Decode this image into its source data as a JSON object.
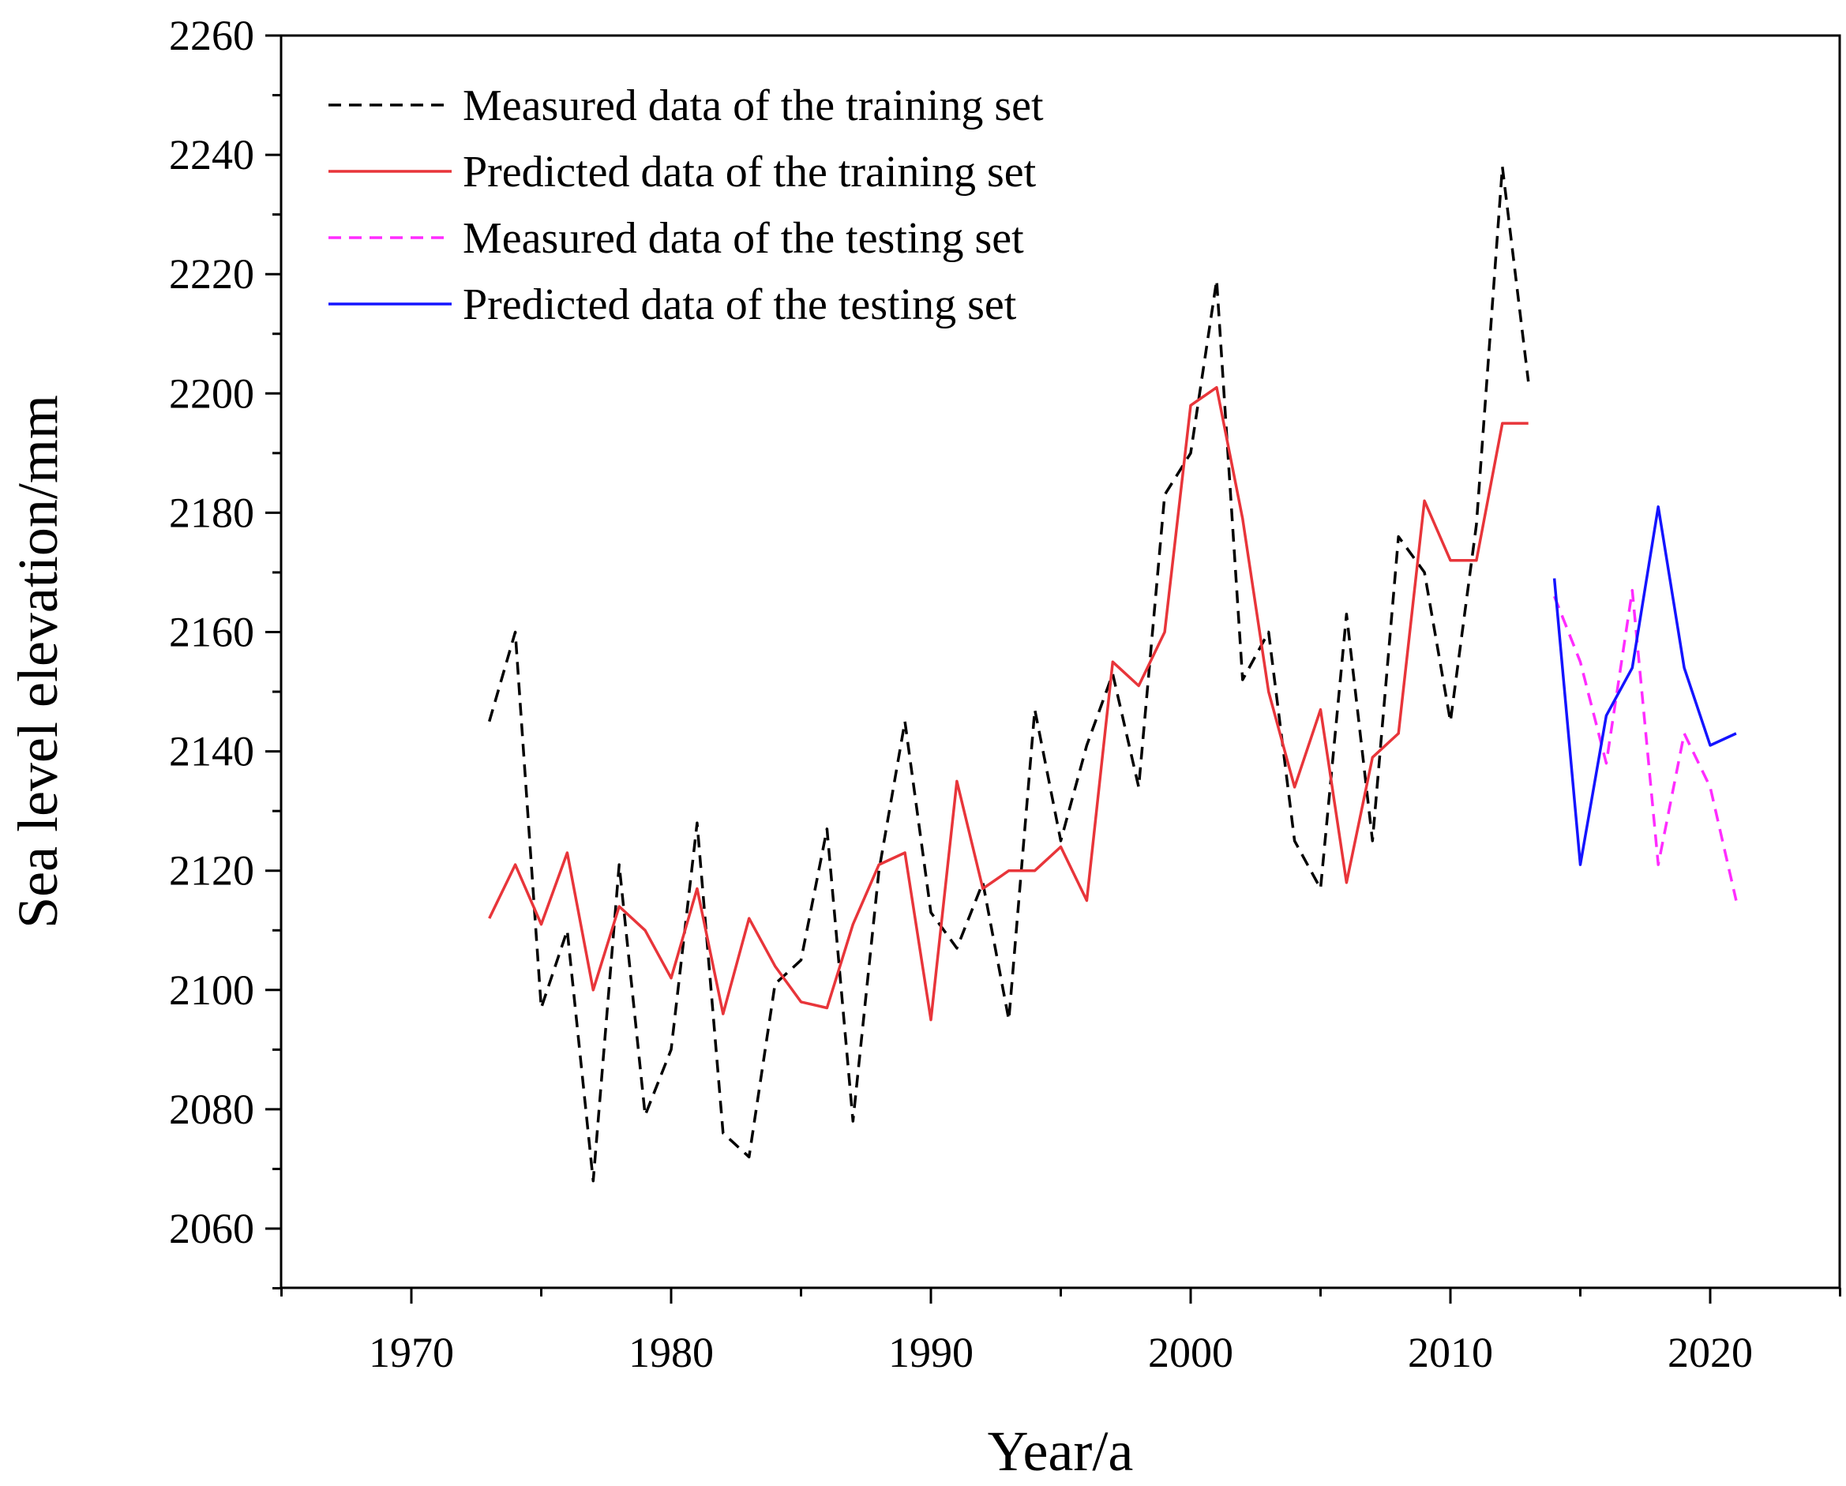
{
  "chart_data": {
    "type": "line",
    "title": "",
    "xlabel": "Year/a",
    "ylabel": "Sea level elevation/mm",
    "xlim": [
      1965,
      2025
    ],
    "ylim": [
      2050,
      2260
    ],
    "xticks": [
      1970,
      1980,
      1990,
      2000,
      2010,
      2020
    ],
    "yticks": [
      2060,
      2080,
      2100,
      2120,
      2140,
      2160,
      2180,
      2200,
      2220,
      2240,
      2260
    ],
    "grid": false,
    "legend_position": "top-left",
    "series": [
      {
        "name": "Measured data of the training set",
        "color": "#000000",
        "dash": "dashed",
        "x": [
          1973,
          1974,
          1975,
          1976,
          1977,
          1978,
          1979,
          1980,
          1981,
          1982,
          1983,
          1984,
          1985,
          1986,
          1987,
          1988,
          1989,
          1990,
          1991,
          1992,
          1993,
          1994,
          1995,
          1996,
          1997,
          1998,
          1999,
          2000,
          2001,
          2002,
          2003,
          2004,
          2005,
          2006,
          2007,
          2008,
          2009,
          2010,
          2011,
          2012,
          2013
        ],
        "values": [
          2145,
          2160,
          2097,
          2110,
          2068,
          2121,
          2079,
          2090,
          2128,
          2076,
          2072,
          2101,
          2105,
          2127,
          2078,
          2120,
          2145,
          2113,
          2107,
          2118,
          2095,
          2147,
          2125,
          2141,
          2153,
          2134,
          2183,
          2190,
          2219,
          2152,
          2160,
          2125,
          2117,
          2163,
          2125,
          2176,
          2170,
          2145,
          2178,
          2238,
          2202
        ]
      },
      {
        "name": "Predicted data of the training set",
        "color": "#e8353a",
        "dash": "solid",
        "x": [
          1973,
          1974,
          1975,
          1976,
          1977,
          1978,
          1979,
          1980,
          1981,
          1982,
          1983,
          1984,
          1985,
          1986,
          1987,
          1988,
          1989,
          1990,
          1991,
          1992,
          1993,
          1994,
          1995,
          1996,
          1997,
          1998,
          1999,
          2000,
          2001,
          2002,
          2003,
          2004,
          2005,
          2006,
          2007,
          2008,
          2009,
          2010,
          2011,
          2012,
          2013
        ],
        "values": [
          2112,
          2121,
          2111,
          2123,
          2100,
          2114,
          2110,
          2102,
          2117,
          2096,
          2112,
          2104,
          2098,
          2097,
          2111,
          2121,
          2123,
          2095,
          2135,
          2117,
          2120,
          2120,
          2124,
          2115,
          2155,
          2151,
          2160,
          2198,
          2201,
          2179,
          2150,
          2134,
          2147,
          2118,
          2139,
          2143,
          2182,
          2172,
          2172,
          2195,
          2195
        ]
      },
      {
        "name": "Measured data of the testing set",
        "color": "#ff2cff",
        "dash": "dashed",
        "x": [
          2014,
          2015,
          2016,
          2017,
          2018,
          2019,
          2020,
          2021
        ],
        "values": [
          2166,
          2155,
          2138,
          2167,
          2121,
          2143,
          2134,
          2115
        ]
      },
      {
        "name": "Predicted data of the testing set",
        "color": "#1414ff",
        "dash": "solid",
        "x": [
          2014,
          2015,
          2016,
          2017,
          2018,
          2019,
          2020,
          2021
        ],
        "values": [
          2169,
          2121,
          2146,
          2154,
          2181,
          2154,
          2141,
          2143
        ]
      }
    ]
  }
}
